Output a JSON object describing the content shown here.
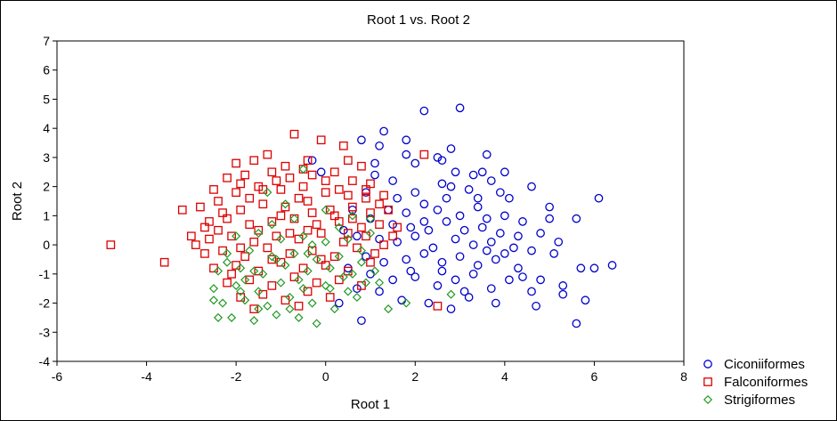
{
  "chart_data": {
    "type": "scatter",
    "title": "Root 1 vs. Root 2",
    "xlabel": "Root 1",
    "ylabel": "Root 2",
    "xlim": [
      -6,
      8
    ],
    "ylim": [
      -4,
      7
    ],
    "xticks": [
      "-6",
      "-4",
      "-2",
      "0",
      "2",
      "4",
      "6",
      "8"
    ],
    "yticks": [
      "-4",
      "-3",
      "-2",
      "-1",
      "0",
      "1",
      "2",
      "3",
      "4",
      "5",
      "6",
      "7"
    ],
    "legend_position": "bottom-right",
    "series": [
      {
        "name": "Ciconiiformes",
        "marker": "circle",
        "color": "#0000cc",
        "points": [
          [
            3.0,
            4.7
          ],
          [
            2.2,
            4.6
          ],
          [
            1.3,
            3.9
          ],
          [
            2.8,
            3.3
          ],
          [
            1.8,
            3.6
          ],
          [
            0.8,
            3.6
          ],
          [
            2.0,
            2.8
          ],
          [
            2.5,
            3.0
          ],
          [
            3.6,
            3.1
          ],
          [
            1.2,
            3.4
          ],
          [
            1.8,
            3.1
          ],
          [
            2.6,
            2.9
          ],
          [
            3.5,
            2.5
          ],
          [
            3.3,
            2.4
          ],
          [
            2.9,
            2.5
          ],
          [
            4.0,
            2.5
          ],
          [
            4.6,
            2.0
          ],
          [
            2.6,
            2.1
          ],
          [
            3.7,
            2.2
          ],
          [
            1.5,
            2.2
          ],
          [
            1.1,
            2.4
          ],
          [
            0.9,
            1.8
          ],
          [
            2.0,
            1.8
          ],
          [
            2.8,
            2.0
          ],
          [
            3.2,
            1.9
          ],
          [
            3.9,
            1.8
          ],
          [
            4.1,
            1.6
          ],
          [
            5.0,
            1.3
          ],
          [
            6.1,
            1.6
          ],
          [
            1.4,
            1.2
          ],
          [
            1.8,
            1.1
          ],
          [
            2.2,
            1.4
          ],
          [
            2.5,
            1.2
          ],
          [
            3.0,
            1.0
          ],
          [
            3.4,
            1.3
          ],
          [
            3.6,
            0.9
          ],
          [
            4.0,
            1.0
          ],
          [
            4.4,
            0.8
          ],
          [
            5.0,
            0.9
          ],
          [
            5.6,
            0.9
          ],
          [
            1.0,
            0.9
          ],
          [
            1.5,
            0.7
          ],
          [
            1.9,
            0.6
          ],
          [
            2.3,
            0.5
          ],
          [
            2.7,
            0.8
          ],
          [
            3.1,
            0.5
          ],
          [
            3.5,
            0.6
          ],
          [
            3.9,
            0.4
          ],
          [
            4.3,
            0.3
          ],
          [
            4.8,
            0.4
          ],
          [
            5.2,
            0.1
          ],
          [
            0.7,
            0.3
          ],
          [
            1.2,
            0.2
          ],
          [
            1.6,
            0.1
          ],
          [
            2.0,
            0.3
          ],
          [
            2.4,
            -0.1
          ],
          [
            2.9,
            0.2
          ],
          [
            3.3,
            0.0
          ],
          [
            3.7,
            0.1
          ],
          [
            4.2,
            -0.1
          ],
          [
            4.6,
            -0.2
          ],
          [
            5.1,
            -0.3
          ],
          [
            5.7,
            -0.8
          ],
          [
            6.0,
            -0.8
          ],
          [
            6.4,
            -0.7
          ],
          [
            0.9,
            -0.4
          ],
          [
            1.3,
            -0.6
          ],
          [
            1.8,
            -0.5
          ],
          [
            2.2,
            -0.3
          ],
          [
            2.6,
            -0.6
          ],
          [
            3.0,
            -0.4
          ],
          [
            3.4,
            -0.7
          ],
          [
            3.8,
            -0.5
          ],
          [
            4.3,
            -0.8
          ],
          [
            4.8,
            -1.2
          ],
          [
            5.3,
            -1.4
          ],
          [
            5.8,
            -1.9
          ],
          [
            1.0,
            -1.0
          ],
          [
            1.5,
            -1.2
          ],
          [
            2.0,
            -1.1
          ],
          [
            2.5,
            -1.4
          ],
          [
            2.9,
            -1.2
          ],
          [
            3.3,
            -1.0
          ],
          [
            3.7,
            -1.5
          ],
          [
            4.1,
            -1.2
          ],
          [
            4.6,
            -1.6
          ],
          [
            5.3,
            -1.7
          ],
          [
            1.2,
            -1.6
          ],
          [
            1.7,
            -1.9
          ],
          [
            2.3,
            -2.0
          ],
          [
            2.8,
            -2.2
          ],
          [
            3.2,
            -1.8
          ],
          [
            3.8,
            -2.0
          ],
          [
            4.7,
            -2.1
          ],
          [
            5.6,
            -2.7
          ],
          [
            0.8,
            -2.6
          ],
          [
            0.3,
            -2.0
          ],
          [
            0.7,
            -1.5
          ],
          [
            0.5,
            -0.8
          ],
          [
            0.4,
            0.5
          ],
          [
            0.6,
            1.2
          ],
          [
            -0.1,
            2.5
          ],
          [
            -0.3,
            2.9
          ],
          [
            1.1,
            2.8
          ],
          [
            2.2,
            0.8
          ],
          [
            3.4,
            1.6
          ],
          [
            2.6,
            -0.9
          ],
          [
            4.0,
            -0.3
          ],
          [
            1.9,
            -0.9
          ],
          [
            2.7,
            1.6
          ],
          [
            3.1,
            -1.6
          ],
          [
            1.6,
            1.6
          ],
          [
            4.4,
            -1.1
          ],
          [
            3.6,
            -0.2
          ]
        ]
      },
      {
        "name": "Falconiformes",
        "marker": "square",
        "color": "#dd0000",
        "points": [
          [
            -4.8,
            0.0
          ],
          [
            -3.6,
            -0.6
          ],
          [
            -3.2,
            1.2
          ],
          [
            -0.7,
            3.8
          ],
          [
            -0.1,
            3.6
          ],
          [
            0.4,
            3.4
          ],
          [
            2.2,
            3.1
          ],
          [
            -2.0,
            2.8
          ],
          [
            -1.6,
            2.9
          ],
          [
            -1.3,
            3.1
          ],
          [
            -0.9,
            2.7
          ],
          [
            -0.4,
            2.9
          ],
          [
            0.5,
            2.9
          ],
          [
            0.8,
            2.7
          ],
          [
            -2.2,
            2.3
          ],
          [
            -1.8,
            2.4
          ],
          [
            -1.2,
            2.5
          ],
          [
            -0.8,
            2.3
          ],
          [
            -0.3,
            2.4
          ],
          [
            0.2,
            2.5
          ],
          [
            0.6,
            2.2
          ],
          [
            1.0,
            2.1
          ],
          [
            -2.5,
            1.9
          ],
          [
            -2.0,
            1.8
          ],
          [
            -1.5,
            2.0
          ],
          [
            -1.0,
            1.9
          ],
          [
            -0.5,
            2.0
          ],
          [
            0.0,
            1.8
          ],
          [
            0.5,
            1.7
          ],
          [
            0.9,
            1.6
          ],
          [
            1.3,
            1.7
          ],
          [
            -2.8,
            1.3
          ],
          [
            -2.4,
            1.5
          ],
          [
            -1.9,
            1.2
          ],
          [
            -1.4,
            1.4
          ],
          [
            -0.9,
            1.3
          ],
          [
            -0.4,
            1.5
          ],
          [
            0.1,
            1.2
          ],
          [
            0.6,
            1.3
          ],
          [
            1.0,
            1.1
          ],
          [
            1.4,
            1.2
          ],
          [
            -2.6,
            0.8
          ],
          [
            -2.2,
            0.9
          ],
          [
            -1.7,
            0.7
          ],
          [
            -1.2,
            0.8
          ],
          [
            -0.7,
            0.9
          ],
          [
            -0.2,
            0.7
          ],
          [
            0.3,
            0.8
          ],
          [
            0.8,
            0.6
          ],
          [
            1.2,
            0.7
          ],
          [
            1.6,
            0.6
          ],
          [
            -3.0,
            0.3
          ],
          [
            -2.6,
            0.2
          ],
          [
            -2.1,
            0.3
          ],
          [
            -1.6,
            0.1
          ],
          [
            -1.1,
            0.3
          ],
          [
            -0.6,
            0.2
          ],
          [
            -0.1,
            0.4
          ],
          [
            0.4,
            0.1
          ],
          [
            0.9,
            0.3
          ],
          [
            1.3,
            0.0
          ],
          [
            -2.7,
            -0.3
          ],
          [
            -2.3,
            -0.2
          ],
          [
            -1.8,
            -0.4
          ],
          [
            -1.3,
            -0.1
          ],
          [
            -0.8,
            -0.3
          ],
          [
            -0.3,
            -0.2
          ],
          [
            0.2,
            -0.4
          ],
          [
            0.7,
            -0.1
          ],
          [
            1.1,
            -0.3
          ],
          [
            -2.5,
            -0.8
          ],
          [
            -2.0,
            -0.7
          ],
          [
            -1.5,
            -0.9
          ],
          [
            -1.0,
            -0.6
          ],
          [
            -0.5,
            -0.8
          ],
          [
            0.0,
            -0.7
          ],
          [
            0.5,
            -0.9
          ],
          [
            1.0,
            -0.6
          ],
          [
            -2.2,
            -1.3
          ],
          [
            -1.7,
            -1.2
          ],
          [
            -1.2,
            -1.4
          ],
          [
            -0.7,
            -1.1
          ],
          [
            -0.2,
            -1.3
          ],
          [
            0.3,
            -1.2
          ],
          [
            0.8,
            -1.4
          ],
          [
            -1.9,
            -1.8
          ],
          [
            -1.4,
            -1.7
          ],
          [
            -0.9,
            -1.9
          ],
          [
            -0.4,
            -1.6
          ],
          [
            0.1,
            -1.8
          ],
          [
            -1.6,
            -2.2
          ],
          [
            -0.6,
            -2.1
          ],
          [
            2.5,
            -2.1
          ],
          [
            -2.9,
            0.0
          ],
          [
            -1.9,
            2.1
          ],
          [
            -1.1,
            2.2
          ],
          [
            -0.6,
            1.6
          ],
          [
            0.3,
            1.9
          ],
          [
            -2.3,
            1.1
          ],
          [
            -1.5,
            0.5
          ],
          [
            -0.4,
            0.5
          ],
          [
            0.6,
            0.9
          ],
          [
            -1.2,
            -0.5
          ],
          [
            -0.1,
            -0.5
          ],
          [
            -2.4,
            0.5
          ],
          [
            -1.0,
            1.0
          ],
          [
            0.2,
            1.0
          ],
          [
            1.2,
            1.4
          ],
          [
            -0.5,
            2.6
          ],
          [
            -1.7,
            1.6
          ],
          [
            -2.1,
            -1.0
          ],
          [
            0.5,
            0.4
          ],
          [
            1.5,
            0.3
          ],
          [
            -0.8,
            0.4
          ],
          [
            -1.4,
            1.9
          ],
          [
            0.0,
            2.2
          ],
          [
            -2.7,
            0.6
          ],
          [
            -1.9,
            -0.1
          ],
          [
            -0.3,
            1.1
          ],
          [
            0.9,
            1.9
          ]
        ]
      },
      {
        "name": "Strigiformes",
        "marker": "diamond",
        "color": "#229922",
        "points": [
          [
            -0.5,
            2.6
          ],
          [
            -1.3,
            1.8
          ],
          [
            -0.9,
            1.4
          ],
          [
            0.0,
            1.2
          ],
          [
            0.6,
            1.0
          ],
          [
            1.0,
            0.9
          ],
          [
            -2.0,
            0.3
          ],
          [
            -1.5,
            0.4
          ],
          [
            -1.0,
            0.2
          ],
          [
            -0.5,
            0.3
          ],
          [
            0.0,
            0.1
          ],
          [
            0.5,
            0.2
          ],
          [
            1.0,
            0.4
          ],
          [
            -2.2,
            -0.3
          ],
          [
            -1.7,
            -0.2
          ],
          [
            -1.2,
            -0.4
          ],
          [
            -0.7,
            -0.3
          ],
          [
            -0.2,
            -0.5
          ],
          [
            0.3,
            -0.4
          ],
          [
            0.8,
            -0.6
          ],
          [
            -2.4,
            -0.9
          ],
          [
            -1.9,
            -0.8
          ],
          [
            -1.4,
            -1.0
          ],
          [
            -0.9,
            -0.7
          ],
          [
            -0.4,
            -0.9
          ],
          [
            0.1,
            -0.8
          ],
          [
            0.6,
            -1.0
          ],
          [
            1.1,
            -0.9
          ],
          [
            -2.5,
            -1.5
          ],
          [
            -2.0,
            -1.4
          ],
          [
            -1.5,
            -1.6
          ],
          [
            -1.0,
            -1.3
          ],
          [
            -0.5,
            -1.5
          ],
          [
            0.0,
            -1.4
          ],
          [
            0.5,
            -1.6
          ],
          [
            1.2,
            -1.3
          ],
          [
            -2.3,
            -2.0
          ],
          [
            -1.8,
            -1.9
          ],
          [
            -1.3,
            -2.1
          ],
          [
            -0.8,
            -1.8
          ],
          [
            -0.3,
            -2.0
          ],
          [
            0.2,
            -2.2
          ],
          [
            -2.4,
            -2.5
          ],
          [
            -2.1,
            -2.5
          ],
          [
            -1.6,
            -2.6
          ],
          [
            -1.1,
            -2.4
          ],
          [
            -0.6,
            -2.5
          ],
          [
            -0.2,
            -2.7
          ],
          [
            -2.5,
            -1.9
          ],
          [
            1.8,
            -2.0
          ],
          [
            1.4,
            -2.2
          ],
          [
            2.8,
            -1.7
          ],
          [
            -1.6,
            -0.9
          ],
          [
            -0.6,
            -1.2
          ],
          [
            0.4,
            -1.1
          ],
          [
            -1.1,
            -0.5
          ],
          [
            -0.3,
            0.0
          ],
          [
            0.8,
            -0.2
          ],
          [
            -1.8,
            -1.2
          ],
          [
            -0.8,
            -2.2
          ],
          [
            0.7,
            -1.8
          ],
          [
            -1.2,
            0.7
          ],
          [
            0.3,
            0.6
          ],
          [
            -0.7,
            0.9
          ],
          [
            -1.5,
            -2.2
          ],
          [
            -2.2,
            -0.6
          ],
          [
            0.1,
            -1.5
          ],
          [
            -0.4,
            -0.3
          ],
          [
            0.9,
            -1.3
          ],
          [
            -1.9,
            -1.6
          ]
        ]
      }
    ]
  }
}
